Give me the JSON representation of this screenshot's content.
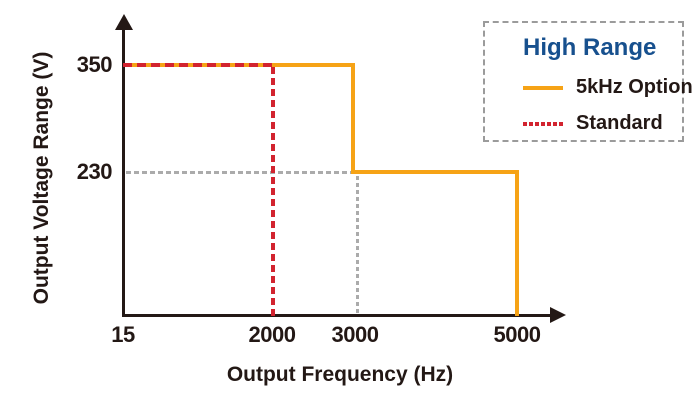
{
  "colors": {
    "accent_orange": "#F6A316",
    "accent_red": "#D2232F",
    "reference_gray": "#ABABAB",
    "axis_dark": "#231815",
    "legend_title_blue": "#17508E",
    "legend_border_gray": "#9B9B9B",
    "bg": "#FFFFFF"
  },
  "chart_data": {
    "type": "line",
    "subtype": "step",
    "title": "",
    "xlabel": "Output Frequency (Hz)",
    "ylabel": "Output Voltage Range (V)",
    "x_tick_labels": [
      "15",
      "2000",
      "3000",
      "5000"
    ],
    "y_tick_labels": [
      "350",
      "230"
    ],
    "x_range": [
      15,
      5000
    ],
    "y_tick_values": [
      350,
      230
    ],
    "grid": false,
    "legend": {
      "title": "High Range",
      "position": "top-right",
      "border": "dashed"
    },
    "series": [
      {
        "name": "5kHz Option",
        "style": "solid",
        "color": "#F6A316",
        "points_hz_v": [
          [
            15,
            350
          ],
          [
            3000,
            350
          ],
          [
            3000,
            230
          ],
          [
            5000,
            230
          ],
          [
            5000,
            0
          ]
        ]
      },
      {
        "name": "Standard",
        "style": "dashed",
        "color": "#D2232F",
        "points_hz_v": [
          [
            15,
            350
          ],
          [
            2000,
            350
          ],
          [
            2000,
            0
          ]
        ]
      }
    ],
    "reference_lines": [
      {
        "orientation": "horizontal",
        "value_v": 230,
        "from_hz": 15,
        "to_hz": 3000,
        "style": "dashed",
        "color": "#ABABAB"
      },
      {
        "orientation": "vertical",
        "value_hz": 3000,
        "from_v": 0,
        "to_v": 230,
        "style": "dashed",
        "color": "#ABABAB"
      }
    ]
  }
}
